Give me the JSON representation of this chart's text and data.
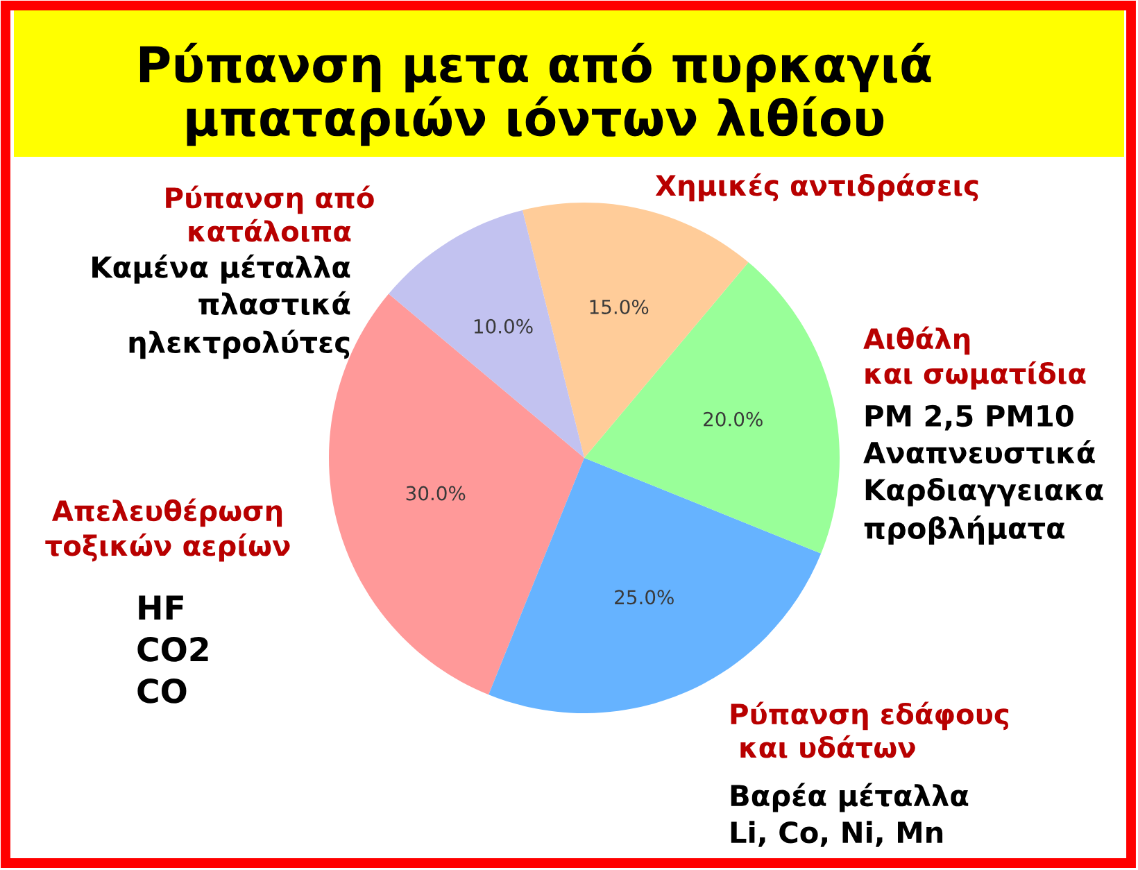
{
  "chart_data": {
    "type": "pie",
    "title": "Ρύπανση μετα από πυρκαγιά\nμπαταριών ιόντων λιθίου",
    "categories": [
      "Απελευθέρωση\nτοξικών αερίων",
      "Ρύπανση εδάφους\n και υδάτων",
      "Αιθάλη\nκαι σωματίδια",
      "Χημικές αντιδράσεις",
      "Ρύπανση από\nκατάλοιπα"
    ],
    "values": [
      30,
      25,
      20,
      15,
      10
    ],
    "colors": [
      "#ff9999",
      "#66b3ff",
      "#99ff99",
      "#ffcc99",
      "#c2c2f0"
    ],
    "value_labels": [
      "30.0%",
      "25.0%",
      "20.0%",
      "15.0%",
      "10.0%"
    ],
    "annotations": [
      "HF\nCO2\nCO",
      "Βαρέα μέταλλα\nLi, Co, Ni, Mn",
      "PM 2,5 PM10\nΑναπνευστικά\nΚαρδιαγγειακα\nπροβλήματα",
      "Καμένα μέταλλα\nπλαστικά\nηλεκτρολύτες"
    ]
  }
}
